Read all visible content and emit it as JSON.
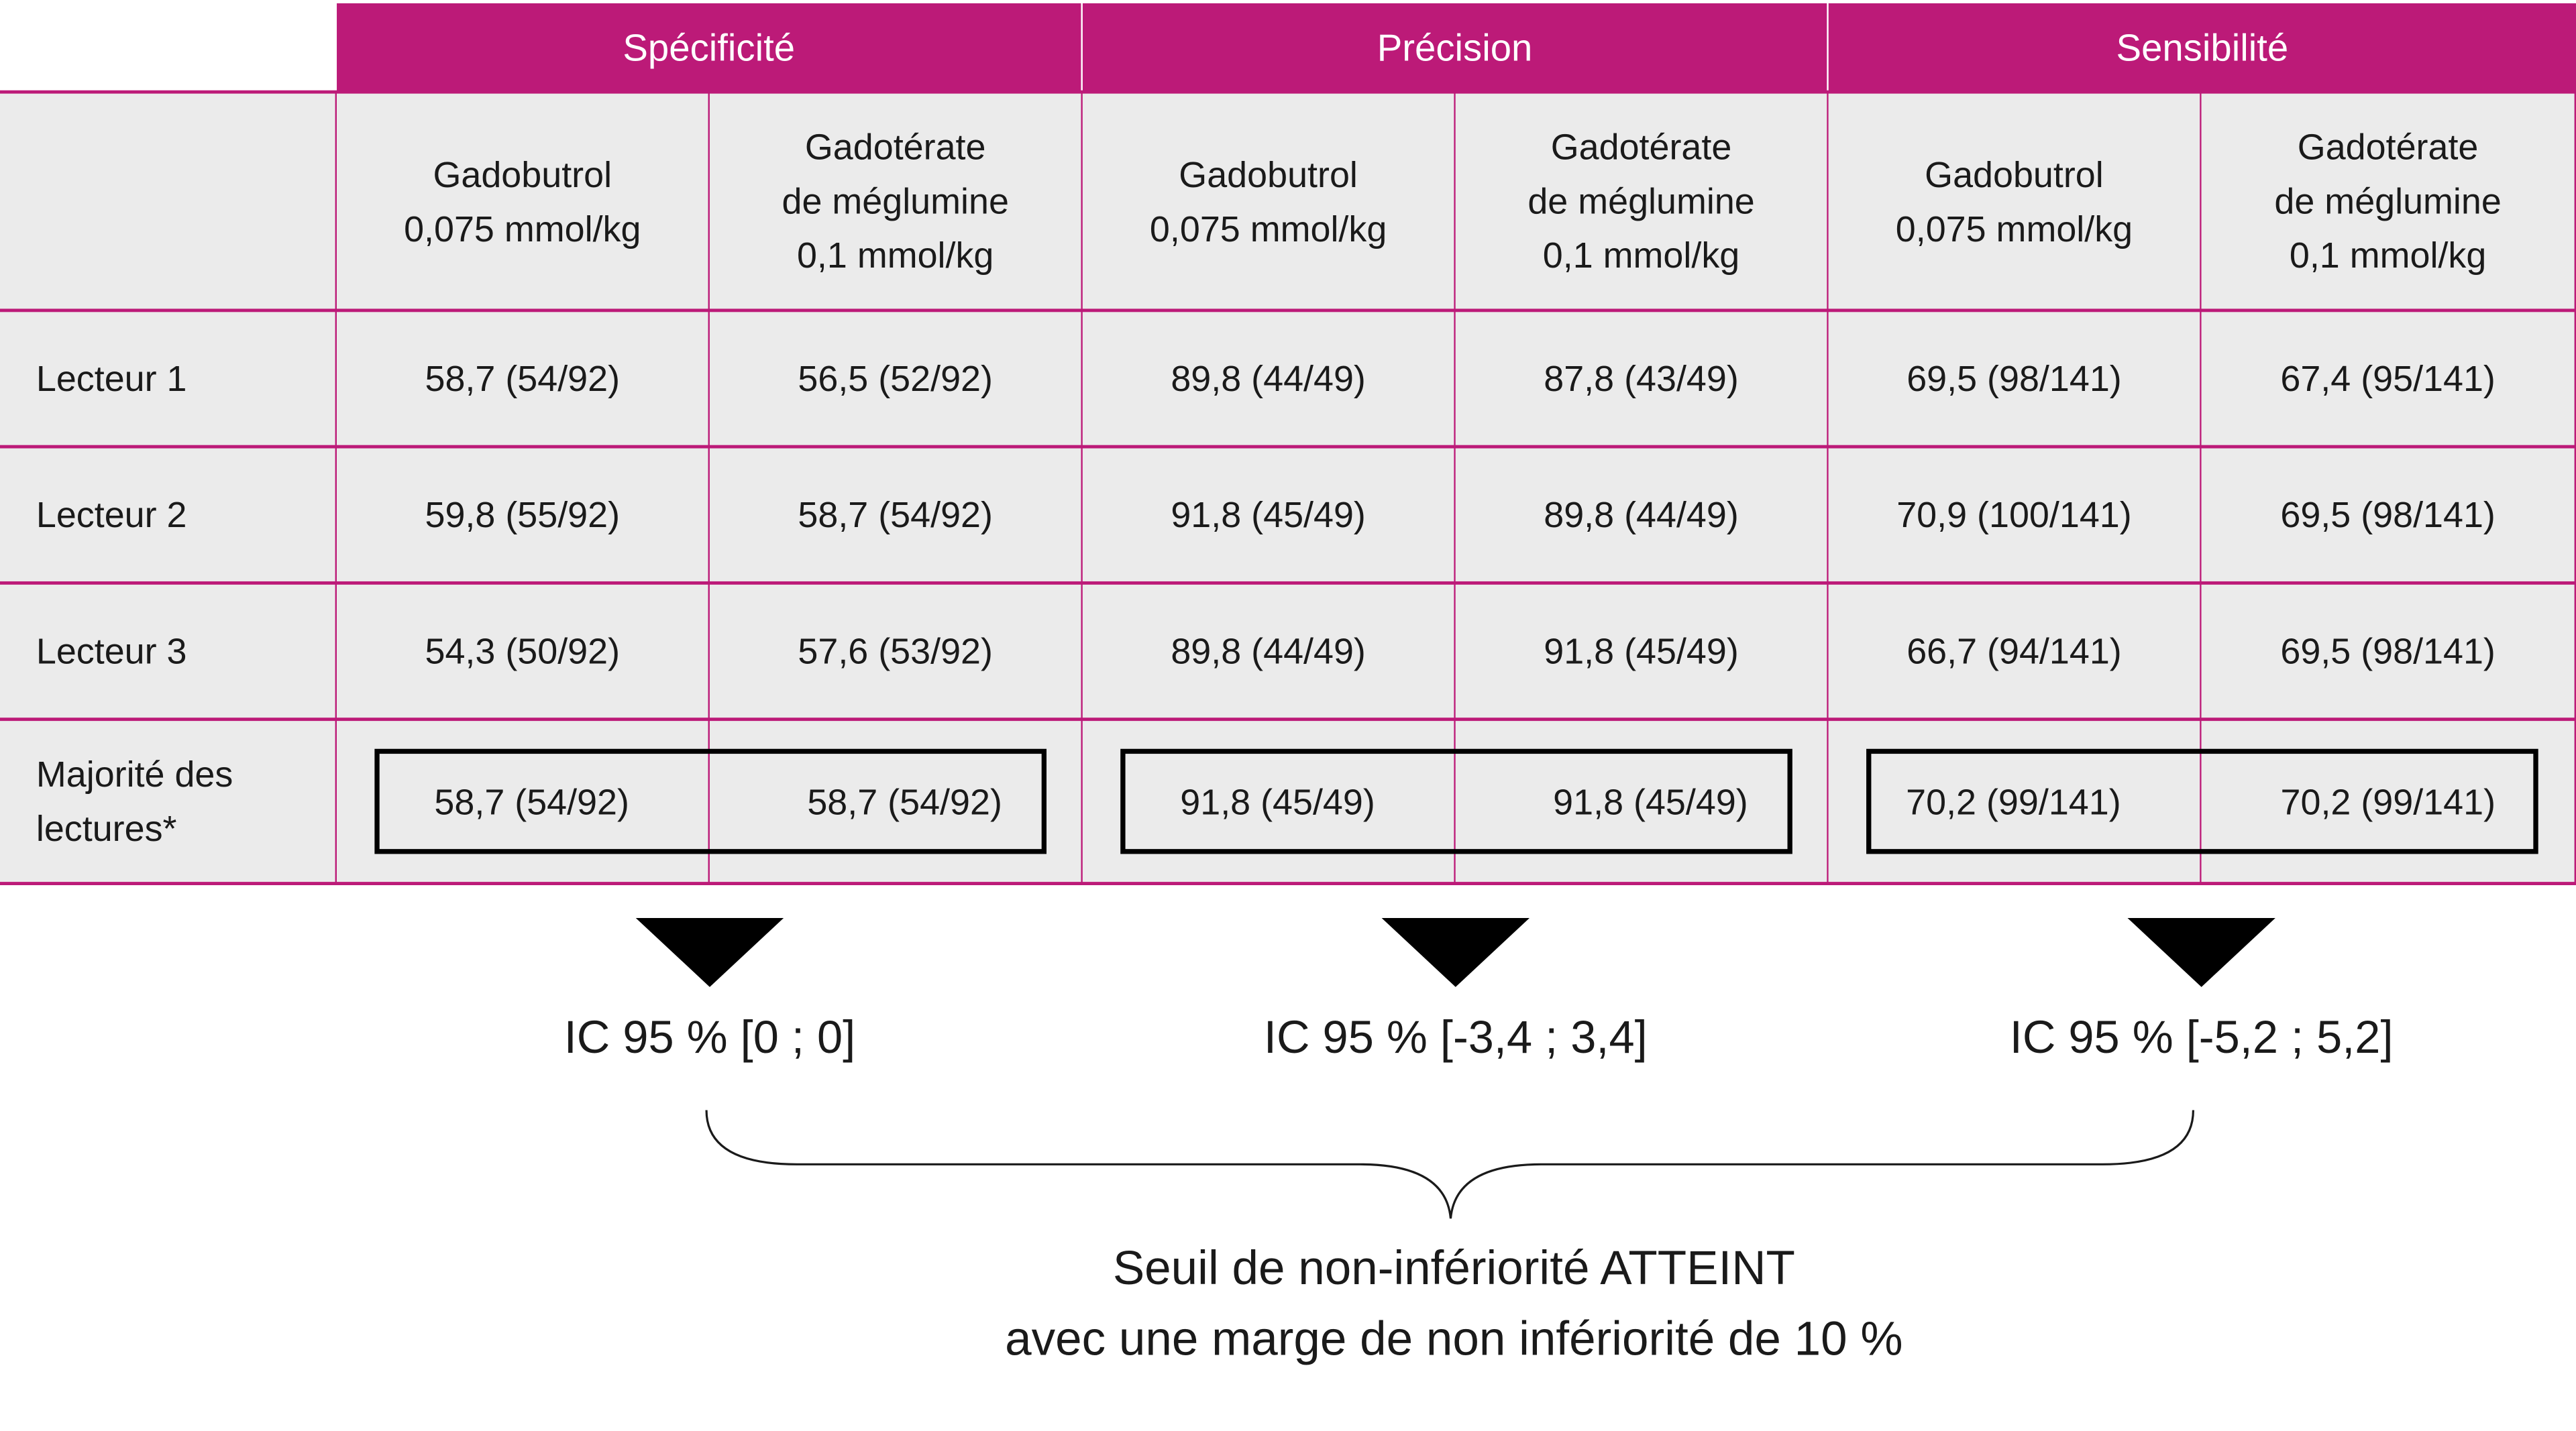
{
  "groups": [
    "Spécificité",
    "Précision",
    "Sensibilité"
  ],
  "subheaders": {
    "gadobutrol": [
      "Gadobutrol",
      "0,075 mmol/kg"
    ],
    "gadoterate": [
      "Gadotérate",
      "de méglumine",
      "0,1 mmol/kg"
    ]
  },
  "rows": [
    {
      "label": "Lecteur 1",
      "values": [
        "58,7 (54/92)",
        "56,5 (52/92)",
        "89,8 (44/49)",
        "87,8 (43/49)",
        "69,5 (98/141)",
        "67,4 (95/141)"
      ]
    },
    {
      "label": "Lecteur 2",
      "values": [
        "59,8 (55/92)",
        "58,7 (54/92)",
        "91,8 (45/49)",
        "89,8 (44/49)",
        "70,9 (100/141)",
        "69,5 (98/141)"
      ]
    },
    {
      "label": "Lecteur 3",
      "values": [
        "54,3 (50/92)",
        "57,6 (53/92)",
        "89,8 (44/49)",
        "91,8 (45/49)",
        "66,7 (94/141)",
        "69,5 (98/141)"
      ]
    },
    {
      "label": "Majorité des lectures*",
      "values": [
        "58,7 (54/92)",
        "58,7 (54/92)",
        "91,8 (45/49)",
        "91,8 (45/49)",
        "70,2 (99/141)",
        "70,2 (99/141)"
      ]
    }
  ],
  "confidence_intervals": [
    "IC 95 % [0 ; 0]",
    "IC 95 % [-3,4 ; 3,4]",
    "IC 95 % [-5,2 ; 5,2]"
  ],
  "conclusion": [
    "Seuil de non-infériorité ATTEINT",
    "avec une marge de non infériorité de 10 %"
  ],
  "colors": {
    "header": "#bc1a78",
    "cell": "#ebebeb"
  }
}
